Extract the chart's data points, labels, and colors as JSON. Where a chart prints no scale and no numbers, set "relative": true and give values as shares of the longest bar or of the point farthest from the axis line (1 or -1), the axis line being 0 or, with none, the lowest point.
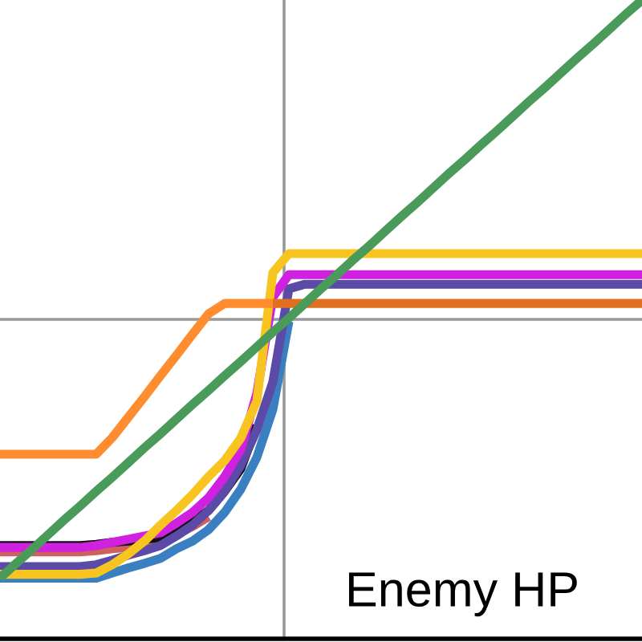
{
  "chart_data": {
    "type": "line",
    "relative": true,
    "xlabel": "Enemy HP",
    "ref_lines": [
      {
        "axis": "y",
        "value": 0.5,
        "color": "#999999"
      },
      {
        "axis": "x",
        "color": "#999999"
      }
    ],
    "line_style": "solid",
    "categories": [
      null,
      null,
      null,
      null,
      null,
      null,
      null,
      null,
      null,
      null,
      null,
      null,
      null,
      null,
      null,
      null,
      null,
      null,
      null,
      null,
      null,
      null,
      null,
      null,
      null,
      null,
      null,
      null,
      null,
      null,
      null,
      null,
      null,
      null,
      null,
      null,
      null,
      null,
      null,
      null,
      null
    ],
    "series": [
      {
        "color": "#d06060",
        "values": [
          0.136,
          0.136,
          0.136,
          0.136,
          0.136,
          0.136,
          0.138,
          0.141,
          0.143,
          0.146,
          0.151,
          0.163,
          0.176,
          0.191,
          null,
          null,
          null,
          null,
          null,
          null,
          null,
          null,
          null,
          null,
          null,
          null,
          null,
          null,
          null,
          null,
          null,
          null,
          null,
          null,
          null,
          null,
          null,
          null,
          null,
          null,
          null
        ]
      },
      {
        "color": "#111111",
        "values": [
          0.146,
          0.146,
          0.146,
          0.146,
          0.146,
          0.146,
          0.148,
          0.151,
          0.153,
          0.156,
          0.158,
          0.171,
          0.183,
          0.201,
          0.231,
          0.266,
          0.334,
          null,
          null,
          null,
          null,
          null,
          null,
          null,
          null,
          null,
          null,
          null,
          null,
          null,
          null,
          null,
          null,
          null,
          null,
          null,
          null,
          null,
          null,
          null,
          null
        ]
      },
      {
        "color": "#3a7fc0",
        "values": [
          0.095,
          0.095,
          0.095,
          0.095,
          0.095,
          0.095,
          0.095,
          0.103,
          0.111,
          0.118,
          0.126,
          0.141,
          0.153,
          0.171,
          0.198,
          0.234,
          0.284,
          0.359,
          0.497,
          null,
          null,
          null,
          null,
          null,
          null,
          null,
          null,
          null,
          null,
          null,
          null,
          null,
          null,
          null,
          null,
          null,
          null,
          null,
          null,
          null,
          null
        ]
      },
      {
        "color": "#5b4aa8",
        "values": [
          0.113,
          0.113,
          0.113,
          0.113,
          0.113,
          0.113,
          0.116,
          0.123,
          0.131,
          0.138,
          0.146,
          0.161,
          0.178,
          0.201,
          0.231,
          0.271,
          0.327,
          0.402,
          0.548,
          0.555,
          0.555,
          0.555,
          0.555,
          0.555,
          0.555,
          0.555,
          0.555,
          0.555,
          0.555,
          0.555,
          0.555,
          0.555,
          0.555,
          0.555,
          0.555,
          0.555,
          0.555,
          0.555,
          0.555,
          0.555,
          0.555
        ]
      },
      {
        "color": "#d020e0",
        "values": [
          0.143,
          0.143,
          0.143,
          0.143,
          0.143,
          0.143,
          0.146,
          0.151,
          0.156,
          0.161,
          0.166,
          0.181,
          0.198,
          0.221,
          0.254,
          0.296,
          0.384,
          0.535,
          0.57,
          0.57,
          0.57,
          0.57,
          0.57,
          0.57,
          0.57,
          0.57,
          0.57,
          0.57,
          0.57,
          0.57,
          0.57,
          0.57,
          0.57,
          0.57,
          0.57,
          0.57,
          0.57,
          0.57,
          0.57,
          0.57,
          0.57
        ]
      },
      {
        "color": "#f8c520",
        "values": [
          0.101,
          0.101,
          0.101,
          0.101,
          0.101,
          0.101,
          0.103,
          0.116,
          0.133,
          0.153,
          0.178,
          0.201,
          0.226,
          0.254,
          0.279,
          0.314,
          0.372,
          0.573,
          0.603,
          0.603,
          0.603,
          0.603,
          0.603,
          0.603,
          0.603,
          0.603,
          0.603,
          0.603,
          0.603,
          0.603,
          0.603,
          0.603,
          0.603,
          0.603,
          0.603,
          0.603,
          0.603,
          0.603,
          0.603,
          0.603,
          0.603
        ]
      },
      {
        "color": "#ff8c2e",
        "values": [
          0.289,
          0.289,
          0.289,
          0.289,
          0.289,
          0.289,
          0.289,
          0.315,
          0.347,
          0.379,
          0.412,
          0.444,
          0.477,
          0.509,
          0.525,
          0.525,
          0.525,
          0.525,
          null,
          null,
          null,
          null,
          null,
          null,
          null,
          null,
          null,
          null,
          null,
          null,
          null,
          null,
          null,
          null,
          null,
          null,
          null,
          null,
          null,
          null,
          null
        ]
      },
      {
        "color": "#e07020",
        "values": [
          null,
          null,
          null,
          null,
          null,
          null,
          null,
          null,
          null,
          null,
          null,
          null,
          null,
          null,
          null,
          null,
          null,
          0.525,
          0.525,
          0.525,
          0.525,
          0.525,
          0.525,
          0.525,
          0.525,
          0.525,
          0.525,
          0.525,
          0.525,
          0.525,
          0.525,
          0.525,
          0.525,
          0.525,
          0.525,
          0.525,
          0.525,
          0.525,
          0.525,
          0.525,
          0.525
        ]
      },
      {
        "color": "#4a9a5a",
        "values": [
          0.095,
          0.118,
          0.14,
          0.163,
          0.186,
          0.208,
          0.231,
          0.253,
          0.276,
          0.299,
          0.321,
          0.344,
          0.367,
          0.389,
          0.412,
          0.434,
          0.457,
          0.48,
          0.502,
          0.525,
          0.548,
          0.57,
          0.593,
          0.615,
          0.638,
          0.661,
          0.683,
          0.706,
          0.729,
          0.751,
          0.774,
          0.796,
          0.819,
          0.842,
          0.864,
          0.887,
          0.91,
          0.932,
          0.955,
          0.978,
          1.0
        ]
      }
    ]
  }
}
